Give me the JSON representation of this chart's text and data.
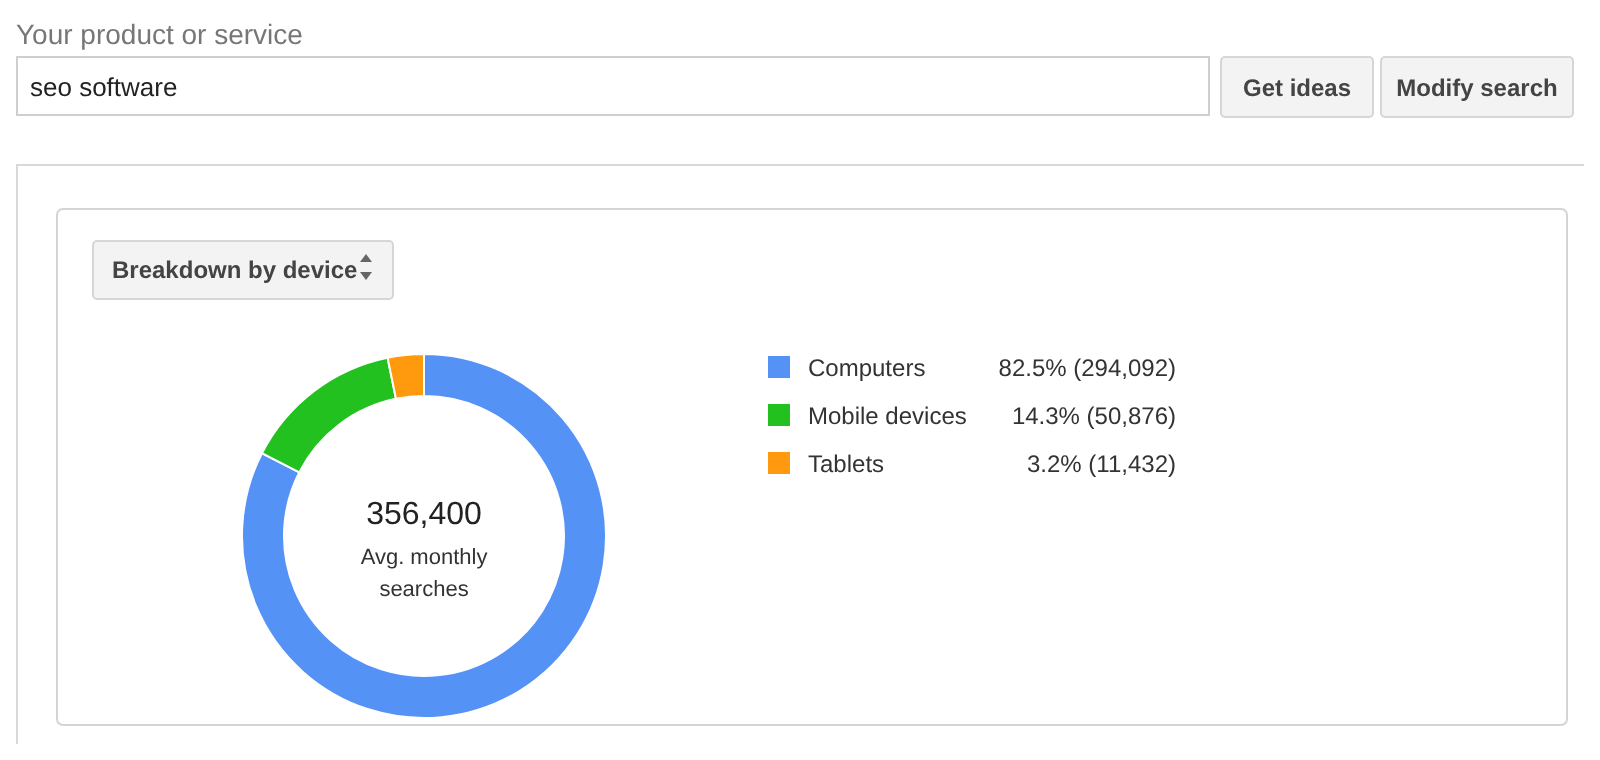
{
  "chart_data": {
    "type": "donut",
    "categories": [
      "Computers",
      "Mobile devices",
      "Tablets"
    ],
    "values": [
      294092,
      50876,
      11432
    ],
    "colors": [
      "#5592f5",
      "#22c11f",
      "#ff9a0e"
    ],
    "value_labels": [
      "82.5% (294,092)",
      "14.3% (50,876)",
      "3.2% (11,432)"
    ],
    "legend": "right",
    "annotations": [
      "Your product or service",
      "seo software",
      "Get ideas",
      "Modify search",
      "Breakdown by device",
      "356,400",
      "Avg. monthly searches"
    ]
  }
}
